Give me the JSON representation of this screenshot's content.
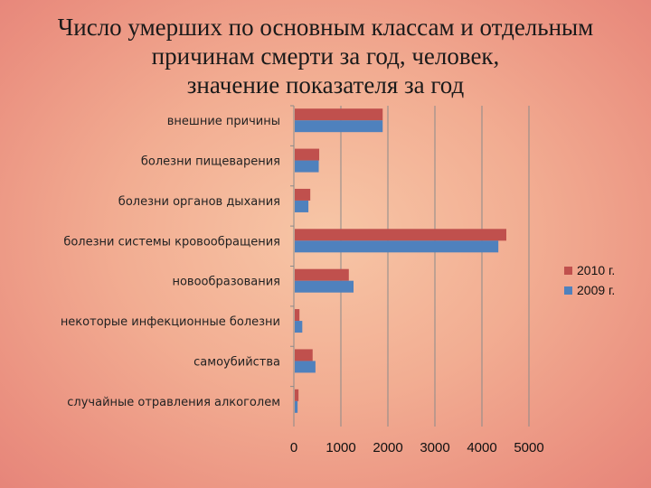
{
  "title_lines": [
    "Число умерших по основным классам и отдельным",
    "причинам смерти за год, человек,",
    "значение показателя за год"
  ],
  "colors": {
    "series_2010": "#c0504d",
    "series_2009": "#4f81bd",
    "gridline": "#8a8a8a"
  },
  "chart_data": {
    "type": "bar",
    "orientation": "horizontal",
    "title": "Число умерших по основным классам и отдельным причинам смерти за год, человек, значение показателя за год",
    "categories": [
      "внешние причины",
      "болезни пищеварения",
      "болезни органов дыхания",
      "болезни системы кровообращения",
      "новообразования",
      "некоторые инфекционные болезни",
      "самоубийства",
      "случайные отравления алкоголем"
    ],
    "series": [
      {
        "name": "2010 г.",
        "color": "#c0504d",
        "values": [
          1870,
          520,
          330,
          4500,
          1150,
          100,
          380,
          80
        ]
      },
      {
        "name": "2009 г.",
        "color": "#4f81bd",
        "values": [
          1870,
          510,
          290,
          4330,
          1250,
          160,
          440,
          60
        ]
      }
    ],
    "xlim": [
      0,
      5000
    ],
    "xticks": [
      "0",
      "1000",
      "2000",
      "3000",
      "4000",
      "5000"
    ],
    "grid": true,
    "legend_position": "right"
  }
}
